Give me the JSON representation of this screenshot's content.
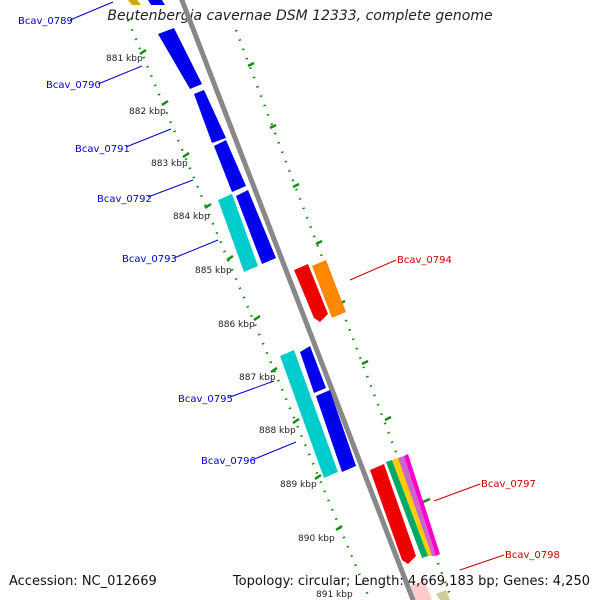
{
  "title": "Beutenbergia cavernae DSM 12333, complete genome",
  "accession": "Accession: NC_012669",
  "topology": "Topology: circular; Length: 4,669,183 bp; Genes: 4,250",
  "colors": {
    "backbone": "#888888",
    "tick_green": "#138d13",
    "label_blue": "#0000cc",
    "label_red": "#cc0000",
    "gene_blue": "#0000ee",
    "gene_cyan": "#00cccc",
    "gene_red": "#ee0000",
    "gene_orange": "#ff8800"
  },
  "kbp_ticks": [
    "881 kbp",
    "882 kbp",
    "883 kbp",
    "884 kbp",
    "885 kbp",
    "886 kbp",
    "887 kbp",
    "888 kbp",
    "889 kbp",
    "890 kbp",
    "891 kbp"
  ],
  "gene_labels": {
    "left": [
      "Bcav_0789",
      "Bcav_0790",
      "Bcav_0791",
      "Bcav_0792",
      "Bcav_0793",
      "Bcav_0795",
      "Bcav_0796"
    ],
    "right": [
      "Bcav_0794",
      "Bcav_0797",
      "Bcav_0798"
    ]
  }
}
